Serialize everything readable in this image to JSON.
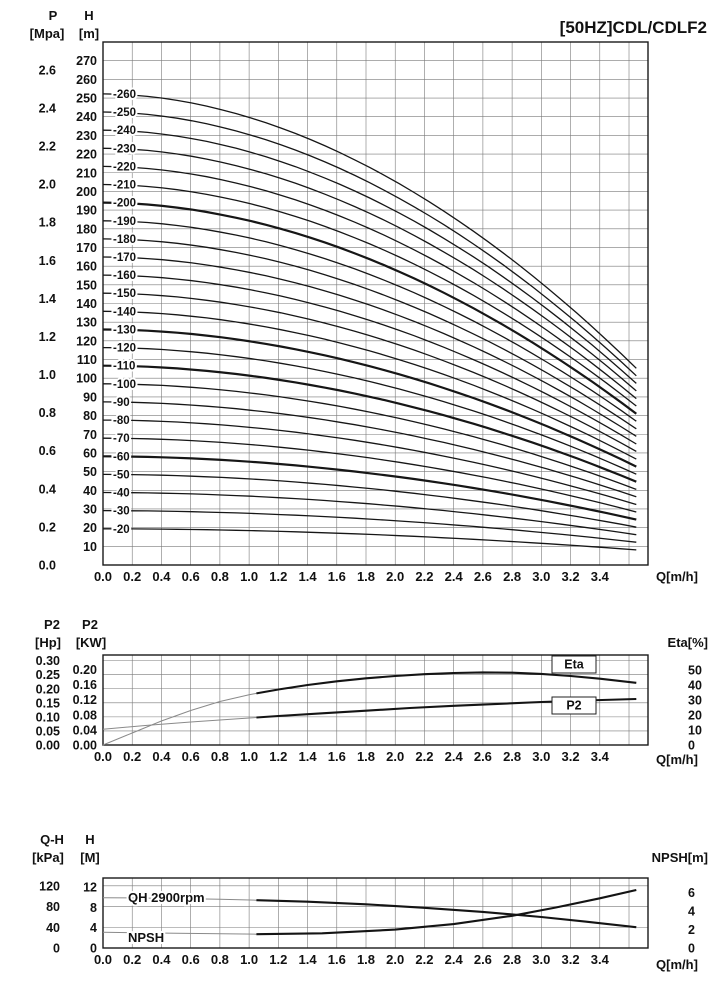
{
  "page": {
    "background": "#ffffff"
  },
  "chart_data": [
    {
      "id": "head-capacity",
      "type": "line",
      "title": "[50HZ]CDL/CDLF2",
      "x_axis": {
        "title": "Q[m/h]",
        "min": 0,
        "max": 3.73,
        "tick_step": 0.2,
        "tick_to": 3.4,
        "grid_to": 3.6
      },
      "y_axis_m": {
        "title_line1": "H",
        "title_line2": "[m]",
        "min": 0,
        "max": 280,
        "tick_from": 10,
        "tick_to": 270,
        "tick_step": 10
      },
      "y_axis_mpa": {
        "title_line1": "P",
        "title_line2": "[Mpa]",
        "ticks": [
          0.0,
          0.2,
          0.4,
          0.6,
          0.8,
          1.0,
          1.2,
          1.4,
          1.6,
          1.8,
          2.0,
          2.2,
          2.4,
          2.6
        ],
        "m_per_mpa": 101.97
      },
      "curve_q_max": 3.65,
      "series": [
        {
          "label": "-260",
          "shutoff_head_m": 252.2,
          "head_at_qmax_m": 105.3,
          "bold": false
        },
        {
          "label": "-250",
          "shutoff_head_m": 242.5,
          "head_at_qmax_m": 101.3,
          "bold": false
        },
        {
          "label": "-240",
          "shutoff_head_m": 232.8,
          "head_at_qmax_m": 97.2,
          "bold": false
        },
        {
          "label": "-230",
          "shutoff_head_m": 223.1,
          "head_at_qmax_m": 93.2,
          "bold": false
        },
        {
          "label": "-220",
          "shutoff_head_m": 213.4,
          "head_at_qmax_m": 89.1,
          "bold": false
        },
        {
          "label": "-210",
          "shutoff_head_m": 203.7,
          "head_at_qmax_m": 85.1,
          "bold": false
        },
        {
          "label": "-200",
          "shutoff_head_m": 194.0,
          "head_at_qmax_m": 81.0,
          "bold": true
        },
        {
          "label": "-190",
          "shutoff_head_m": 184.3,
          "head_at_qmax_m": 77.0,
          "bold": false
        },
        {
          "label": "-180",
          "shutoff_head_m": 174.6,
          "head_at_qmax_m": 72.9,
          "bold": false
        },
        {
          "label": "-170",
          "shutoff_head_m": 164.9,
          "head_at_qmax_m": 68.9,
          "bold": false
        },
        {
          "label": "-160",
          "shutoff_head_m": 155.2,
          "head_at_qmax_m": 64.8,
          "bold": false
        },
        {
          "label": "-150",
          "shutoff_head_m": 145.5,
          "head_at_qmax_m": 60.8,
          "bold": false
        },
        {
          "label": "-140",
          "shutoff_head_m": 135.8,
          "head_at_qmax_m": 56.7,
          "bold": false
        },
        {
          "label": "-130",
          "shutoff_head_m": 126.1,
          "head_at_qmax_m": 52.7,
          "bold": true
        },
        {
          "label": "-120",
          "shutoff_head_m": 116.4,
          "head_at_qmax_m": 48.6,
          "bold": false
        },
        {
          "label": "-110",
          "shutoff_head_m": 106.7,
          "head_at_qmax_m": 44.6,
          "bold": true
        },
        {
          "label": "-100",
          "shutoff_head_m": 97.0,
          "head_at_qmax_m": 40.5,
          "bold": false
        },
        {
          "label": "-90",
          "shutoff_head_m": 87.3,
          "head_at_qmax_m": 36.5,
          "bold": false
        },
        {
          "label": "-80",
          "shutoff_head_m": 77.6,
          "head_at_qmax_m": 32.4,
          "bold": false
        },
        {
          "label": "-70",
          "shutoff_head_m": 67.9,
          "head_at_qmax_m": 28.4,
          "bold": false
        },
        {
          "label": "-60",
          "shutoff_head_m": 58.2,
          "head_at_qmax_m": 24.3,
          "bold": true
        },
        {
          "label": "-50",
          "shutoff_head_m": 48.5,
          "head_at_qmax_m": 20.3,
          "bold": false
        },
        {
          "label": "-40",
          "shutoff_head_m": 38.8,
          "head_at_qmax_m": 16.2,
          "bold": false
        },
        {
          "label": "-30",
          "shutoff_head_m": 29.1,
          "head_at_qmax_m": 12.2,
          "bold": false
        },
        {
          "label": "-20",
          "shutoff_head_m": 19.4,
          "head_at_qmax_m": 8.1,
          "bold": false
        }
      ]
    },
    {
      "id": "power-efficiency",
      "type": "line",
      "x_axis": {
        "title": "Q[m/h]",
        "min": 0,
        "max": 3.73,
        "tick_step": 0.2,
        "tick_to": 3.4,
        "grid_to": 3.6
      },
      "y_axis_hp": {
        "title_line1": "P2",
        "title_line2": "[Hp]",
        "ticks": [
          0,
          0.05,
          0.1,
          0.15,
          0.2,
          0.25,
          0.3
        ],
        "max": 0.32
      },
      "y_axis_kw": {
        "title_line1": "P2",
        "title_line2": "[KW]",
        "ticks": [
          0,
          0.04,
          0.08,
          0.12,
          0.16,
          0.2
        ],
        "hp_per_kw": 1.341
      },
      "y_axis_eta": {
        "title": "Eta[%]",
        "ticks": [
          0,
          10,
          20,
          30,
          40,
          50
        ],
        "max": 60
      },
      "duty_start": 1.05,
      "series": [
        {
          "name": "Eta",
          "axis": "eta",
          "points": [
            [
              0,
              0
            ],
            [
              0.2,
              8
            ],
            [
              0.4,
              16
            ],
            [
              0.6,
              23
            ],
            [
              0.8,
              29
            ],
            [
              1,
              33.5
            ],
            [
              1.2,
              37
            ],
            [
              1.4,
              40
            ],
            [
              1.6,
              42.5
            ],
            [
              1.8,
              44.5
            ],
            [
              2,
              46
            ],
            [
              2.2,
              47.2
            ],
            [
              2.4,
              48
            ],
            [
              2.6,
              48.4
            ],
            [
              2.8,
              48.2
            ],
            [
              3,
              47.4
            ],
            [
              3.2,
              46
            ],
            [
              3.4,
              44.2
            ],
            [
              3.65,
              41.5
            ]
          ]
        },
        {
          "name": "P2",
          "axis": "kw",
          "points": [
            [
              0,
              0.042
            ],
            [
              0.3,
              0.052
            ],
            [
              0.6,
              0.061
            ],
            [
              0.9,
              0.069
            ],
            [
              1.2,
              0.077
            ],
            [
              1.5,
              0.084
            ],
            [
              1.8,
              0.091
            ],
            [
              2.1,
              0.098
            ],
            [
              2.4,
              0.104
            ],
            [
              2.7,
              0.109
            ],
            [
              3,
              0.114
            ],
            [
              3.3,
              0.118
            ],
            [
              3.65,
              0.122
            ]
          ]
        }
      ]
    },
    {
      "id": "qh-npsh",
      "type": "line",
      "x_axis": {
        "title": "Q[m/h]",
        "min": 0,
        "max": 3.73,
        "tick_step": 0.2,
        "tick_to": 3.4,
        "grid_to": 3.6
      },
      "y_axis_kpa": {
        "title_line1": "Q-H",
        "title_line2": "[kPa]",
        "ticks": [
          0,
          40,
          80,
          120
        ],
        "max": 135
      },
      "y_axis_m": {
        "title_line1": "H",
        "title_line2": "[M]",
        "ticks": [
          0,
          4,
          8,
          12
        ],
        "kpa_per_m": 9.807
      },
      "y_axis_npsh": {
        "title": "NPSH[m]",
        "ticks": [
          0,
          2,
          4,
          6
        ],
        "max": 7.6
      },
      "duty_start": 1.05,
      "series": [
        {
          "name": "QH 2900rpm",
          "axis": "m",
          "points": [
            [
              0,
              9.9
            ],
            [
              0.4,
              9.8
            ],
            [
              0.8,
              9.6
            ],
            [
              1.05,
              9.4
            ],
            [
              1.4,
              9.1
            ],
            [
              1.8,
              8.6
            ],
            [
              2.2,
              7.9
            ],
            [
              2.6,
              7.1
            ],
            [
              3,
              6.1
            ],
            [
              3.3,
              5.2
            ],
            [
              3.65,
              4.1
            ]
          ]
        },
        {
          "name": "NPSH",
          "axis": "npsh",
          "points": [
            [
              0,
              1.7
            ],
            [
              0.5,
              1.6
            ],
            [
              1.05,
              1.5
            ],
            [
              1.5,
              1.6
            ],
            [
              2,
              2
            ],
            [
              2.4,
              2.6
            ],
            [
              2.8,
              3.5
            ],
            [
              3.1,
              4.4
            ],
            [
              3.4,
              5.4
            ],
            [
              3.65,
              6.3
            ]
          ]
        }
      ]
    }
  ]
}
